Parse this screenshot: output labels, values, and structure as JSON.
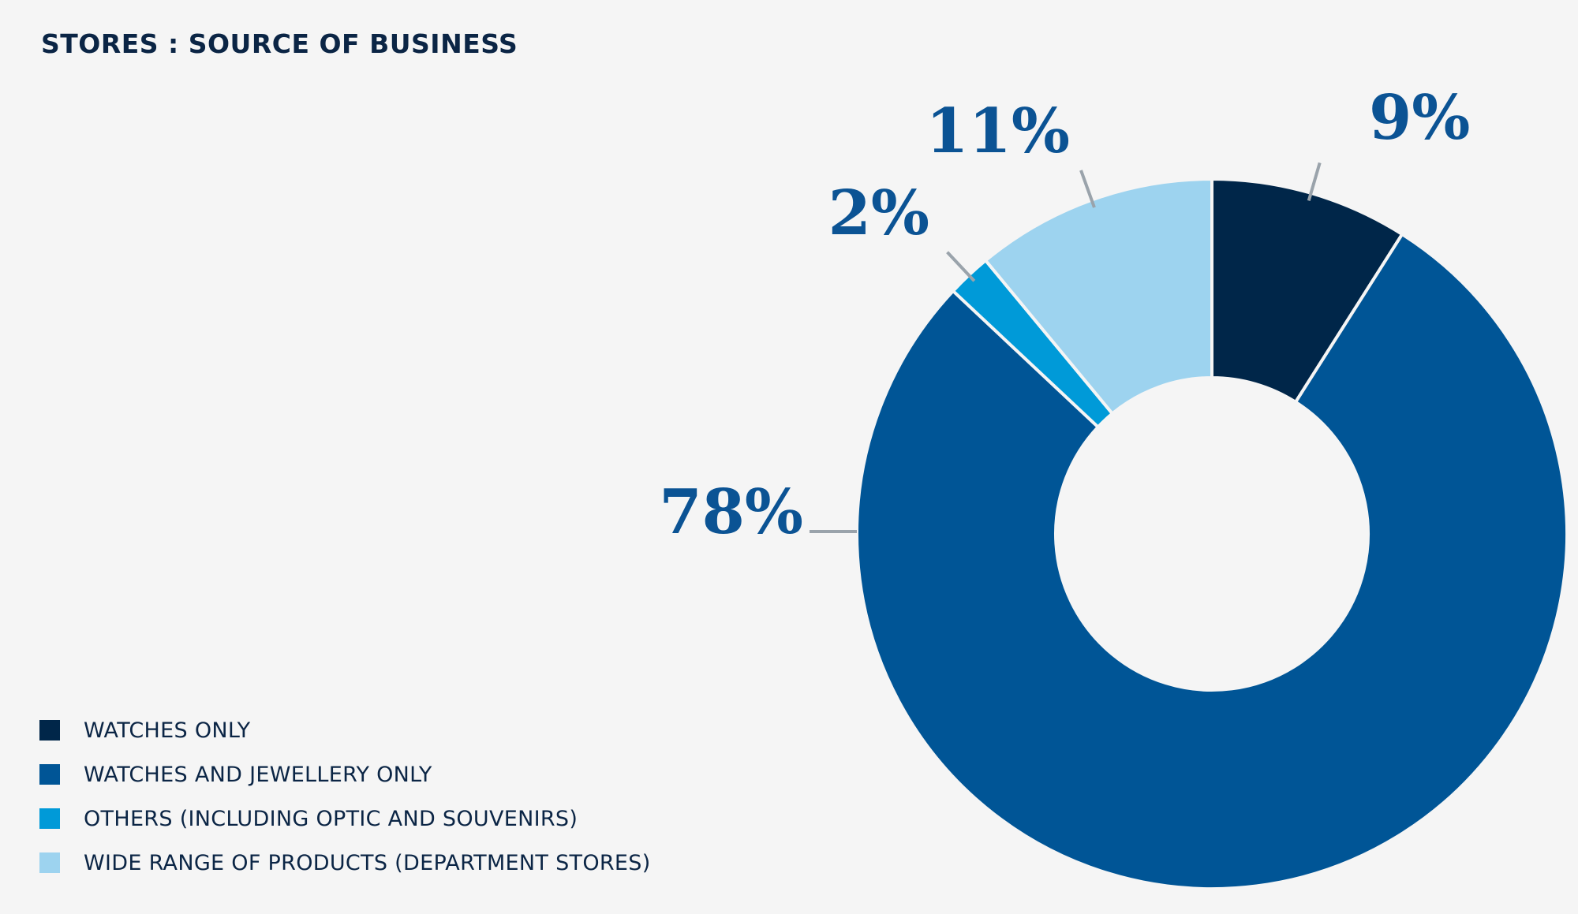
{
  "title": "STORES : SOURCE OF BUSINESS",
  "colors": {
    "background": "#f5f5f5",
    "label_text": "#0b5394",
    "leader_line": "#9aa3ab"
  },
  "chart_data": {
    "type": "pie",
    "donut": true,
    "title": "STORES : SOURCE OF BUSINESS",
    "legend_position": "bottom-left",
    "slices": [
      {
        "name": "WATCHES ONLY",
        "value": 9,
        "label": "9%",
        "color": "#002649"
      },
      {
        "name": "WATCHES AND JEWELLERY ONLY",
        "value": 78,
        "label": "78%",
        "color": "#005596"
      },
      {
        "name": "OTHERS (INCLUDING OPTIC AND SOUVENIRS)",
        "value": 2,
        "label": "2%",
        "color": "#009ad8"
      },
      {
        "name": "WIDE RANGE OF PRODUCTS (DEPARTMENT STORES)",
        "value": 11,
        "label": "11%",
        "color": "#9dd3ef"
      }
    ]
  }
}
